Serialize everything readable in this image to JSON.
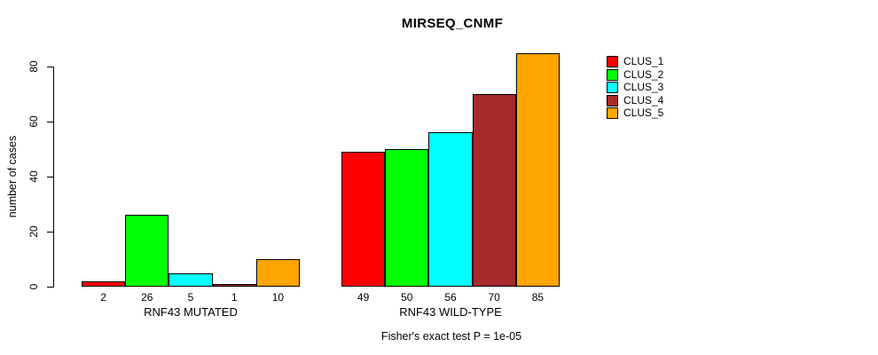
{
  "chart_data": {
    "type": "bar",
    "title": "MIRSEQ_CNMF",
    "ylabel": "number of cases",
    "xlabel": "",
    "yticks": [
      0,
      20,
      40,
      60,
      80
    ],
    "ylim": [
      0,
      85
    ],
    "grid": false,
    "legend_position": "top-right",
    "categories": [
      "RNF43 MUTATED",
      "RNF43 WILD-TYPE"
    ],
    "groups": [
      {
        "label": "RNF43 MUTATED",
        "values": [
          2,
          26,
          5,
          1,
          10
        ]
      },
      {
        "label": "RNF43 WILD-TYPE",
        "values": [
          49,
          50,
          56,
          70,
          85
        ]
      }
    ],
    "series": [
      {
        "name": "CLUS_1",
        "color": "#ff0000",
        "values": [
          2,
          49
        ]
      },
      {
        "name": "CLUS_2",
        "color": "#00ff00",
        "values": [
          26,
          50
        ]
      },
      {
        "name": "CLUS_3",
        "color": "#00ffff",
        "values": [
          5,
          56
        ]
      },
      {
        "name": "CLUS_4",
        "color": "#a52a2a",
        "values": [
          1,
          70
        ]
      },
      {
        "name": "CLUS_5",
        "color": "#ffa500",
        "values": [
          10,
          85
        ]
      }
    ],
    "bar_border_color": "#000000",
    "annotation": "Fisher's exact test P = 1e-05"
  },
  "legend": {
    "items": [
      {
        "label": "CLUS_1",
        "color": "#ff0000"
      },
      {
        "label": "CLUS_2",
        "color": "#00ff00"
      },
      {
        "label": "CLUS_3",
        "color": "#00ffff"
      },
      {
        "label": "CLUS_4",
        "color": "#a52a2a"
      },
      {
        "label": "CLUS_5",
        "color": "#ffa500"
      }
    ]
  }
}
